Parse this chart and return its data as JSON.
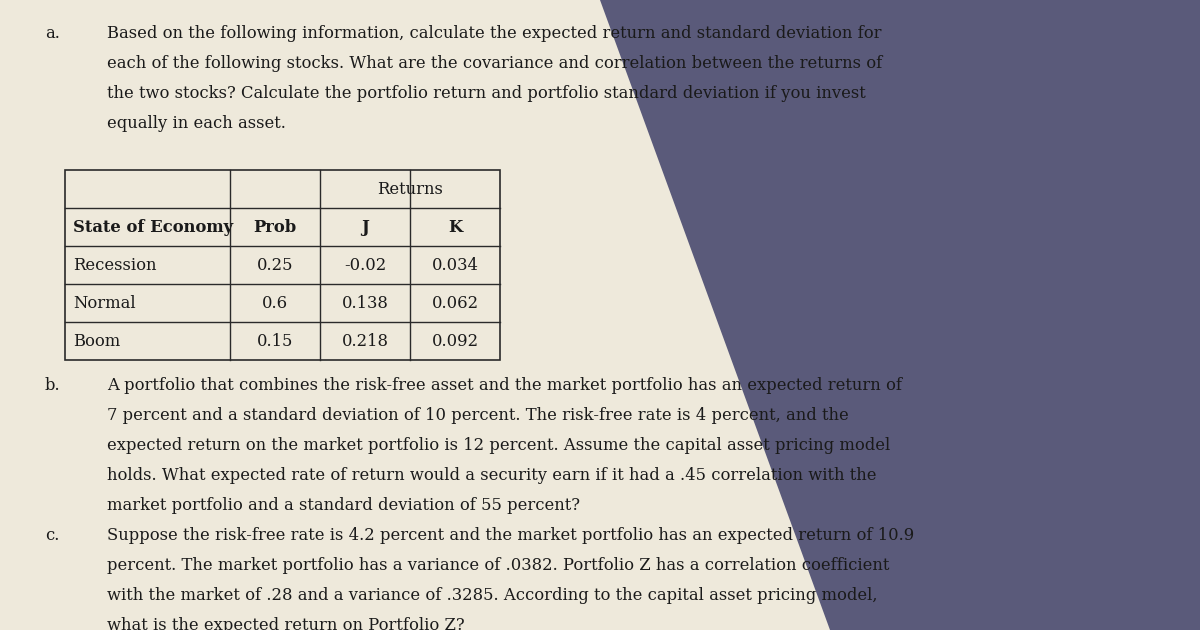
{
  "bg_color": "#e8e3d5",
  "shadow_color": "#5a5a7a",
  "paper_color": "#eee9db",
  "text_color": "#1a1a1a",
  "part_a_label": "a.",
  "part_a_text_lines": [
    "Based on the following information, calculate the expected return and standard deviation for",
    "each of the following stocks. What are the covariance and correlation between the returns of",
    "the two stocks? Calculate the portfolio return and portfolio standard deviation if you invest",
    "equally in each asset."
  ],
  "table_header_top": "Returns",
  "table_col_headers": [
    "State of Economy",
    "Prob",
    "J",
    "K"
  ],
  "table_rows": [
    [
      "Recession",
      "0.25",
      "-0.02",
      "0.034"
    ],
    [
      "Normal",
      "0.6",
      "0.138",
      "0.062"
    ],
    [
      "Boom",
      "0.15",
      "0.218",
      "0.092"
    ]
  ],
  "part_b_label": "b.",
  "part_b_text_lines": [
    "A portfolio that combines the risk-free asset and the market portfolio has an expected return of",
    "7 percent and a standard deviation of 10 percent. The risk-free rate is 4 percent, and the",
    "expected return on the market portfolio is 12 percent. Assume the capital asset pricing model",
    "holds. What expected rate of return would a security earn if it had a .45 correlation with the",
    "market portfolio and a standard deviation of 55 percent?"
  ],
  "part_c_label": "c.",
  "part_c_text_lines": [
    "Suppose the risk-free rate is 4.2 percent and the market portfolio has an expected return of 10.9",
    "percent. The market portfolio has a variance of .0382. Portfolio Z has a correlation coefficient",
    "with the market of .28 and a variance of .3285. According to the capital asset pricing model,",
    "what is the expected return on Portfolio Z?"
  ],
  "font_size_body": 11.8,
  "font_size_table": 11.8
}
